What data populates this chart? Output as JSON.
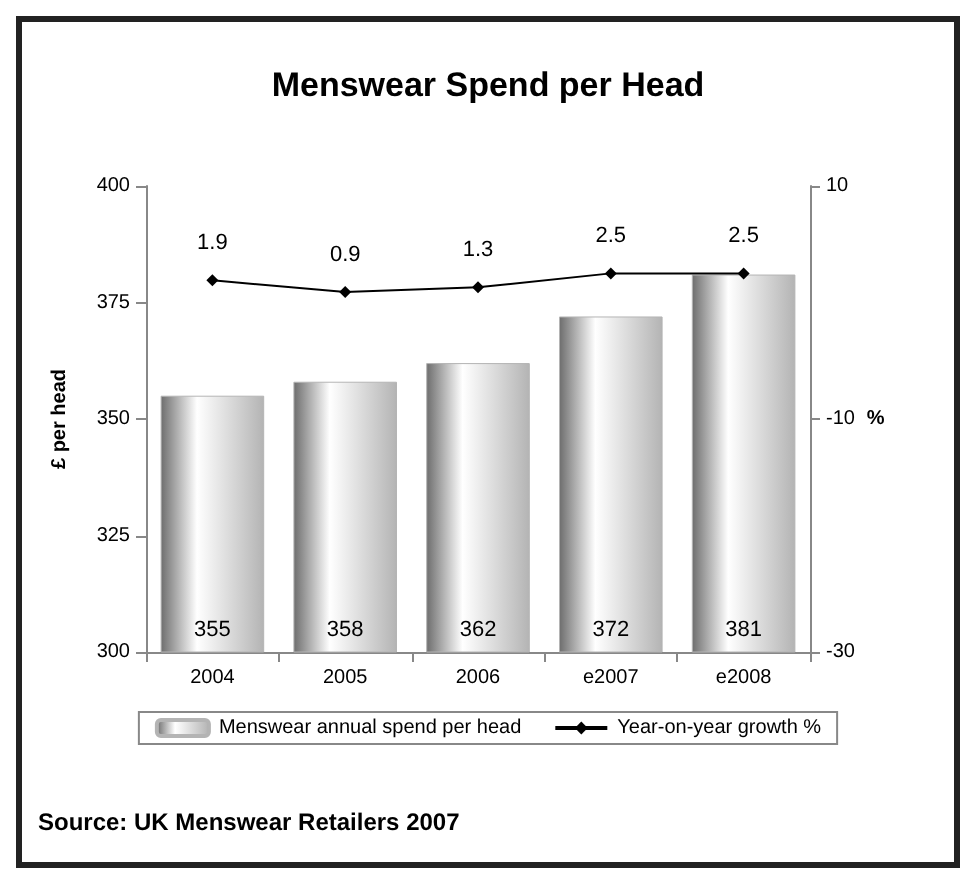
{
  "chart_data": {
    "type": "bar",
    "title": "Menswear Spend per Head",
    "ylabel": "£ per head",
    "y2label": "%",
    "categories": [
      "2004",
      "2005",
      "2006",
      "e2007",
      "e2008"
    ],
    "series": [
      {
        "name": "Menswear annual spend per head",
        "color": "#b4b4b4",
        "values": [
          355,
          358,
          362,
          372,
          381
        ]
      },
      {
        "name": "Year-on-year growth %",
        "type": "line",
        "axis": "y2",
        "color": "#000000",
        "marker": "diamond",
        "values": [
          1.9,
          0.9,
          1.3,
          2.5,
          2.5
        ]
      }
    ],
    "ylim": [
      300,
      400
    ],
    "yticks": [
      300,
      325,
      350,
      375,
      400
    ],
    "y2lim": [
      -30,
      10
    ],
    "y2ticks": [
      -30,
      -10,
      10
    ],
    "data_labels": true,
    "grid": false,
    "legend": "bottom",
    "annotations": [
      "Source: UK Menswear Retailers 2007"
    ]
  }
}
